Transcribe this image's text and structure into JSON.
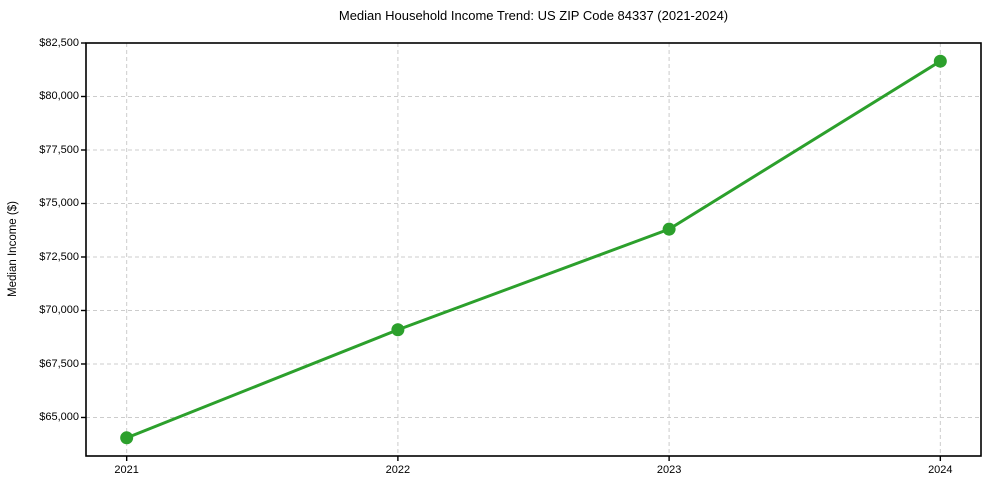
{
  "chart_data": {
    "type": "line",
    "title": "Median Household Income Trend: US ZIP Code 84337 (2021-2024)",
    "xlabel": "",
    "ylabel": "Median Income ($)",
    "categories": [
      "2021",
      "2022",
      "2023",
      "2024"
    ],
    "series": [
      {
        "name": "Median Household Income",
        "values": [
          64050,
          69100,
          73800,
          81650
        ]
      }
    ],
    "yticks": [
      {
        "value": 65000,
        "label": "$65,000"
      },
      {
        "value": 67500,
        "label": "$67,500"
      },
      {
        "value": 70000,
        "label": "$70,000"
      },
      {
        "value": 72500,
        "label": "$72,500"
      },
      {
        "value": 75000,
        "label": "$75,000"
      },
      {
        "value": 77500,
        "label": "$77,500"
      },
      {
        "value": 80000,
        "label": "$80,000"
      },
      {
        "value": 82500,
        "label": "$82,500"
      }
    ],
    "ylim": [
      63200,
      82500
    ],
    "xlim": [
      -0.15,
      3.15
    ],
    "grid": true,
    "grid_style": "dashed",
    "legend_position": "none",
    "marker": "circle",
    "colors": {
      "line": "#2ca02c",
      "marker": "#2ca02c",
      "grid": "#cccccc",
      "spine": "#000000",
      "text": "#000000",
      "background": "#ffffff"
    }
  }
}
